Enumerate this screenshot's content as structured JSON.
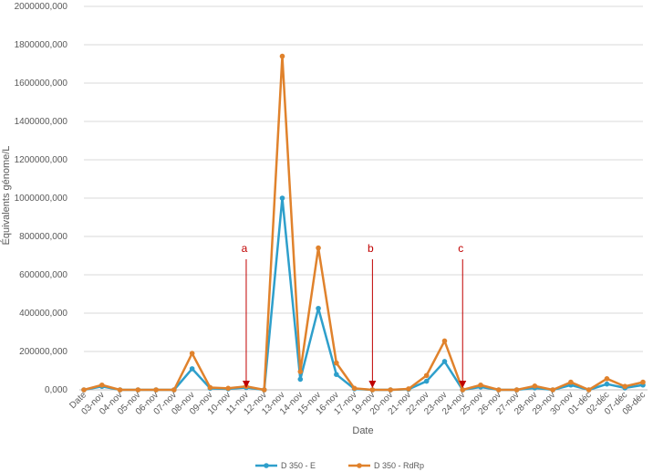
{
  "chart_data": {
    "type": "line",
    "title": "",
    "xlabel": "Date",
    "ylabel": "Équivalents génome/L",
    "ylim": [
      0,
      2000000
    ],
    "y_ticks": [
      0,
      200000,
      400000,
      600000,
      800000,
      1000000,
      1200000,
      1400000,
      1600000,
      1800000,
      2000000
    ],
    "y_tick_labels": [
      "0,000",
      "200000,000",
      "400000,000",
      "600000,000",
      "800000,000",
      "1000000,000",
      "1200000,000",
      "1400000,000",
      "1600000,000",
      "1800000,000",
      "2000000,000"
    ],
    "categories": [
      "Date",
      "03-nov",
      "04-nov",
      "05-nov",
      "06-nov",
      "07-nov",
      "08-nov",
      "09-nov",
      "10-nov",
      "11-nov",
      "12-nov",
      "13-nov",
      "14-nov",
      "15-nov",
      "16-nov",
      "17-nov",
      "19-nov",
      "20-nov",
      "21-nov",
      "22-nov",
      "23-nov",
      "24-nov",
      "25-nov",
      "26-nov",
      "27-nov",
      "28-nov",
      "29-nov",
      "30-nov",
      "01-déc",
      "02-déc",
      "07-déc",
      "08-déc"
    ],
    "series": [
      {
        "name": "D 350 - E",
        "color": "#2E9FCB",
        "values": [
          0,
          18000,
          0,
          0,
          0,
          0,
          110000,
          8000,
          5000,
          12000,
          0,
          1000000,
          55000,
          425000,
          80000,
          5000,
          0,
          0,
          3000,
          45000,
          148000,
          0,
          15000,
          0,
          0,
          10000,
          0,
          25000,
          0,
          30000,
          10000,
          25000
        ]
      },
      {
        "name": "D 350 - RdRp",
        "color": "#E0822C",
        "values": [
          0,
          25000,
          0,
          0,
          0,
          0,
          190000,
          12000,
          8000,
          18000,
          0,
          1740000,
          95000,
          740000,
          140000,
          8000,
          0,
          0,
          5000,
          75000,
          255000,
          0,
          25000,
          0,
          0,
          20000,
          0,
          40000,
          0,
          58000,
          18000,
          40000
        ]
      }
    ],
    "annotations": [
      {
        "label": "a",
        "category": "11-nov",
        "color": "#C00000"
      },
      {
        "label": "b",
        "category": "19-nov",
        "color": "#C00000"
      },
      {
        "label": "c",
        "category": "24-nov",
        "color": "#C00000"
      }
    ],
    "grid": true,
    "legend_position": "bottom"
  }
}
